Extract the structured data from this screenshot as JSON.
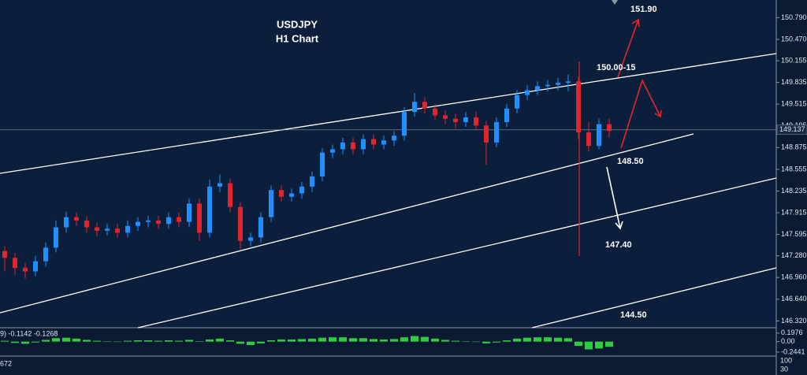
{
  "chart_data": {
    "type": "candlestick",
    "title": "USDJPY",
    "subtitle": "H1 Chart",
    "annotations": [
      "151.90",
      "150.00-15",
      "148.50",
      "147.40",
      "144.50"
    ],
    "current_price": 149.137,
    "up_color": "#1e90ff",
    "down_color": "#e0262b",
    "ylim": [
      146.22,
      151.05
    ],
    "yticks": [
      {
        "value": 150.79,
        "label": "150.790"
      },
      {
        "value": 150.47,
        "label": "150.470"
      },
      150.155,
      149.835,
      149.515,
      149.195,
      148.875,
      148.555,
      148.235,
      147.915,
      147.595,
      {
        "value": 147.28,
        "label": "147.280"
      },
      {
        "value": 146.96,
        "label": "146.960"
      },
      {
        "value": 146.64,
        "label": "146.640"
      },
      {
        "value": 146.32,
        "label": "146.320"
      }
    ],
    "ohlc": [
      [
        147.35,
        147.42,
        147.05,
        147.25
      ],
      [
        147.25,
        147.32,
        147.0,
        147.1
      ],
      [
        147.1,
        147.18,
        146.95,
        147.05
      ],
      [
        147.05,
        147.28,
        146.98,
        147.2
      ],
      [
        147.2,
        147.48,
        147.12,
        147.4
      ],
      [
        147.4,
        147.8,
        147.33,
        147.7
      ],
      [
        147.7,
        147.93,
        147.62,
        147.85
      ],
      [
        147.85,
        147.92,
        147.72,
        147.8
      ],
      [
        147.8,
        147.87,
        147.62,
        147.7
      ],
      [
        147.7,
        147.77,
        147.57,
        147.65
      ],
      [
        147.65,
        147.75,
        147.58,
        147.68
      ],
      [
        147.68,
        147.75,
        147.55,
        147.62
      ],
      [
        147.62,
        147.8,
        147.55,
        147.72
      ],
      [
        147.72,
        147.85,
        147.65,
        147.78
      ],
      [
        147.78,
        147.87,
        147.7,
        147.8
      ],
      [
        147.8,
        147.87,
        147.68,
        147.75
      ],
      [
        147.75,
        147.92,
        147.68,
        147.85
      ],
      [
        147.85,
        147.92,
        147.7,
        147.78
      ],
      [
        147.78,
        148.12,
        147.7,
        148.05
      ],
      [
        148.05,
        148.12,
        147.5,
        147.62
      ],
      [
        147.62,
        148.4,
        147.55,
        148.3
      ],
      [
        148.3,
        148.48,
        148.22,
        148.35
      ],
      [
        148.35,
        148.42,
        147.92,
        148.0
      ],
      [
        148.0,
        148.07,
        147.38,
        147.5
      ],
      [
        147.5,
        147.62,
        147.42,
        147.55
      ],
      [
        147.55,
        147.92,
        147.48,
        147.85
      ],
      [
        147.85,
        148.32,
        147.78,
        148.25
      ],
      [
        148.25,
        148.32,
        148.08,
        148.15
      ],
      [
        148.15,
        148.27,
        148.08,
        148.2
      ],
      [
        148.2,
        148.37,
        148.12,
        148.3
      ],
      [
        148.3,
        148.52,
        148.22,
        148.45
      ],
      [
        148.45,
        148.87,
        148.38,
        148.8
      ],
      [
        148.8,
        148.92,
        148.72,
        148.85
      ],
      [
        148.85,
        149.02,
        148.78,
        148.95
      ],
      [
        148.95,
        149.02,
        148.78,
        148.85
      ],
      [
        148.85,
        149.07,
        148.78,
        149.0
      ],
      [
        149.0,
        149.07,
        148.85,
        148.92
      ],
      [
        148.92,
        149.05,
        148.85,
        148.98
      ],
      [
        148.98,
        149.12,
        148.9,
        149.05
      ],
      [
        149.05,
        149.47,
        148.98,
        149.4
      ],
      [
        149.4,
        149.68,
        149.33,
        149.55
      ],
      [
        149.55,
        149.62,
        149.38,
        149.45
      ],
      [
        149.45,
        149.52,
        149.28,
        149.35
      ],
      [
        149.35,
        149.42,
        149.22,
        149.3
      ],
      [
        149.3,
        149.37,
        149.15,
        149.25
      ],
      [
        149.25,
        149.4,
        149.18,
        149.32
      ],
      [
        149.32,
        149.4,
        149.13,
        149.2
      ],
      [
        149.2,
        149.27,
        148.62,
        148.95
      ],
      [
        148.95,
        149.32,
        148.88,
        149.25
      ],
      [
        149.25,
        149.52,
        149.18,
        149.45
      ],
      [
        149.45,
        149.72,
        149.38,
        149.65
      ],
      [
        149.65,
        149.8,
        149.58,
        149.72
      ],
      [
        149.72,
        149.85,
        149.65,
        149.78
      ],
      [
        149.78,
        149.87,
        149.7,
        149.8
      ],
      [
        149.8,
        149.9,
        149.72,
        149.83
      ],
      [
        149.83,
        149.95,
        149.7,
        149.85
      ],
      [
        149.85,
        149.92,
        149.0,
        149.1
      ],
      [
        149.1,
        149.25,
        148.82,
        148.9
      ],
      [
        148.9,
        149.3,
        148.85,
        149.22
      ],
      [
        149.22,
        149.3,
        149.02,
        149.12
      ]
    ],
    "macd": {
      "label": "9) -0.1142 -0.1268",
      "color": "#2ecc40",
      "ylim": [
        -0.3,
        0.25
      ],
      "yticks": [
        0.1976,
        {
          "value": 0,
          "label": "0.00"
        },
        -0.2441
      ],
      "values": [
        0.02,
        -0.03,
        -0.05,
        -0.02,
        0.04,
        0.08,
        0.09,
        0.07,
        0.04,
        0.02,
        0.01,
        0.0,
        0.02,
        0.03,
        0.03,
        0.02,
        0.03,
        0.02,
        0.04,
        0.01,
        0.05,
        0.07,
        0.03,
        -0.05,
        -0.08,
        -0.04,
        0.03,
        0.05,
        0.05,
        0.06,
        0.07,
        0.09,
        0.1,
        0.1,
        0.08,
        0.08,
        0.06,
        0.05,
        0.06,
        0.1,
        0.13,
        0.11,
        0.07,
        0.04,
        0.02,
        0.01,
        -0.01,
        -0.04,
        -0.02,
        0.03,
        0.07,
        0.09,
        0.1,
        0.1,
        0.09,
        0.08,
        -0.1,
        -0.18,
        -0.16,
        -0.12
      ]
    },
    "oscillator": {
      "label": "672",
      "yticks": [
        "100",
        "30"
      ]
    }
  }
}
